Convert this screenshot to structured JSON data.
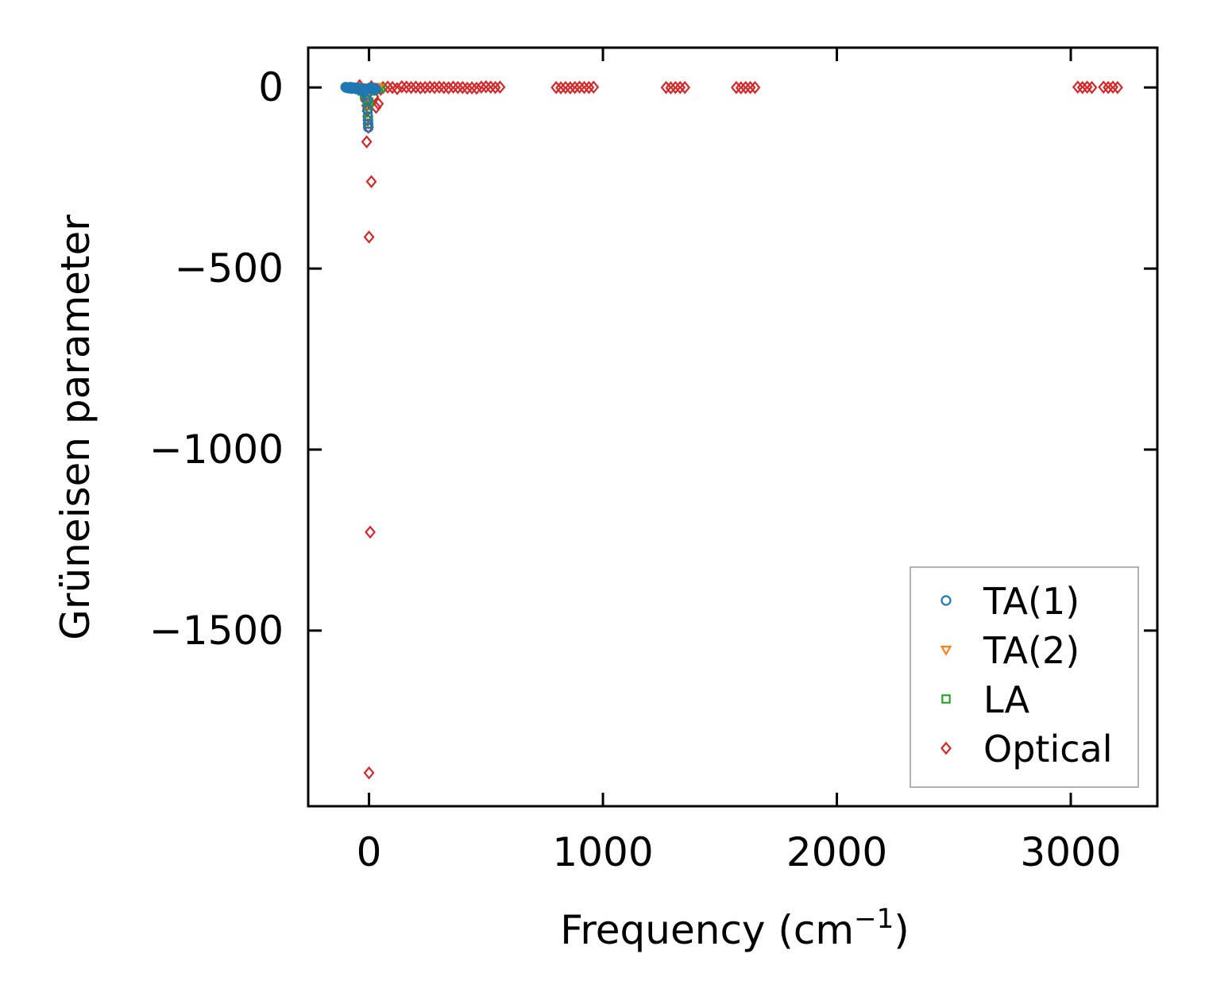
{
  "chart_data": {
    "type": "scatter",
    "xlabel": "Frequency (cm",
    "xlabel_sup": "−1",
    "xlabel_close": ")",
    "ylabel": "Grüneisen parameter",
    "xlim": [
      -260,
      3370
    ],
    "ylim": [
      -1985,
      110
    ],
    "xticks": [
      0,
      1000,
      2000,
      3000
    ],
    "xtick_labels": [
      "0",
      "1000",
      "2000",
      "3000"
    ],
    "yticks": [
      0,
      -500,
      -1000,
      -1500
    ],
    "ytick_labels": [
      "0",
      "−500",
      "−1000",
      "−1500"
    ],
    "grid": false,
    "legend_position": "bottom-right",
    "series": [
      {
        "name": "TA(1)",
        "marker": "circle",
        "color": "#1f77b4",
        "points": [
          [
            -100,
            1
          ],
          [
            -95,
            -1
          ],
          [
            -90,
            0
          ],
          [
            -85,
            -2
          ],
          [
            -80,
            1
          ],
          [
            -75,
            -3
          ],
          [
            -70,
            0
          ],
          [
            -65,
            -2
          ],
          [
            -60,
            -1
          ],
          [
            -55,
            -4
          ],
          [
            -50,
            -1
          ],
          [
            -45,
            -3
          ],
          [
            -40,
            -6
          ],
          [
            -35,
            -2
          ],
          [
            -30,
            -8
          ],
          [
            -25,
            -3
          ],
          [
            -20,
            -12
          ],
          [
            -15,
            -6
          ],
          [
            -10,
            -20
          ],
          [
            -8,
            -35
          ],
          [
            -6,
            -60
          ],
          [
            -5,
            -80
          ],
          [
            -4,
            -100
          ],
          [
            -3,
            -110
          ],
          [
            0,
            -2
          ],
          [
            5,
            -1
          ],
          [
            10,
            -3
          ],
          [
            15,
            -1
          ],
          [
            20,
            -4
          ],
          [
            25,
            -2
          ],
          [
            30,
            -5
          ]
        ]
      },
      {
        "name": "TA(2)",
        "marker": "triangle-down",
        "color": "#ff7f0e",
        "points": [
          [
            -60,
            3
          ],
          [
            -50,
            2
          ],
          [
            -40,
            1
          ],
          [
            -30,
            0
          ],
          [
            -20,
            -2
          ],
          [
            -10,
            -5
          ],
          [
            -5,
            -15
          ],
          [
            0,
            -3
          ],
          [
            10,
            0
          ],
          [
            20,
            2
          ],
          [
            30,
            1
          ],
          [
            40,
            -1
          ]
        ]
      },
      {
        "name": "LA",
        "marker": "square",
        "color": "#2ca02c",
        "points": [
          [
            -40,
            -5
          ],
          [
            -30,
            -10
          ],
          [
            -20,
            -20
          ],
          [
            -10,
            -30
          ],
          [
            -8,
            -50
          ],
          [
            -6,
            -60
          ],
          [
            -5,
            -70
          ],
          [
            -4,
            -80
          ],
          [
            -3,
            -90
          ],
          [
            -2,
            -100
          ],
          [
            0,
            -40
          ],
          [
            10,
            -10
          ],
          [
            20,
            -5
          ],
          [
            30,
            -3
          ],
          [
            40,
            -2
          ],
          [
            50,
            -1
          ]
        ]
      },
      {
        "name": "Optical",
        "marker": "diamond",
        "color": "#d62728",
        "points": [
          [
            -40,
            5
          ],
          [
            -30,
            -10
          ],
          [
            -20,
            -20
          ],
          [
            -15,
            -35
          ],
          [
            -10,
            -50
          ],
          [
            -8,
            -65
          ],
          [
            -5,
            -90
          ],
          [
            -3,
            -110
          ],
          [
            -10,
            -150
          ],
          [
            10,
            -260
          ],
          [
            0,
            -413
          ],
          [
            5,
            -1228
          ],
          [
            0,
            -1893
          ],
          [
            10,
            2
          ],
          [
            20,
            -25
          ],
          [
            30,
            -55
          ],
          [
            40,
            -45
          ],
          [
            50,
            -5
          ],
          [
            60,
            0
          ],
          [
            80,
            1
          ],
          [
            100,
            0
          ],
          [
            120,
            -3
          ],
          [
            140,
            2
          ],
          [
            160,
            1
          ],
          [
            180,
            0
          ],
          [
            200,
            1
          ],
          [
            220,
            -1
          ],
          [
            240,
            0
          ],
          [
            260,
            1
          ],
          [
            280,
            0
          ],
          [
            300,
            1
          ],
          [
            320,
            0
          ],
          [
            340,
            -1
          ],
          [
            360,
            1
          ],
          [
            380,
            0
          ],
          [
            400,
            0
          ],
          [
            420,
            -2
          ],
          [
            440,
            -1
          ],
          [
            460,
            -2
          ],
          [
            480,
            1
          ],
          [
            500,
            2
          ],
          [
            520,
            1
          ],
          [
            540,
            0
          ],
          [
            560,
            1
          ],
          [
            800,
            0
          ],
          [
            820,
            -1
          ],
          [
            840,
            0
          ],
          [
            860,
            -1
          ],
          [
            880,
            0
          ],
          [
            900,
            1
          ],
          [
            920,
            0
          ],
          [
            940,
            0
          ],
          [
            960,
            1
          ],
          [
            1270,
            0
          ],
          [
            1290,
            -1
          ],
          [
            1310,
            0
          ],
          [
            1330,
            0
          ],
          [
            1350,
            0
          ],
          [
            1570,
            0
          ],
          [
            1590,
            -1
          ],
          [
            1610,
            0
          ],
          [
            1630,
            0
          ],
          [
            1650,
            0
          ],
          [
            3030,
            1
          ],
          [
            3050,
            0
          ],
          [
            3070,
            1
          ],
          [
            3090,
            0
          ],
          [
            3140,
            1
          ],
          [
            3160,
            0
          ],
          [
            3180,
            1
          ],
          [
            3200,
            0
          ]
        ]
      }
    ]
  }
}
